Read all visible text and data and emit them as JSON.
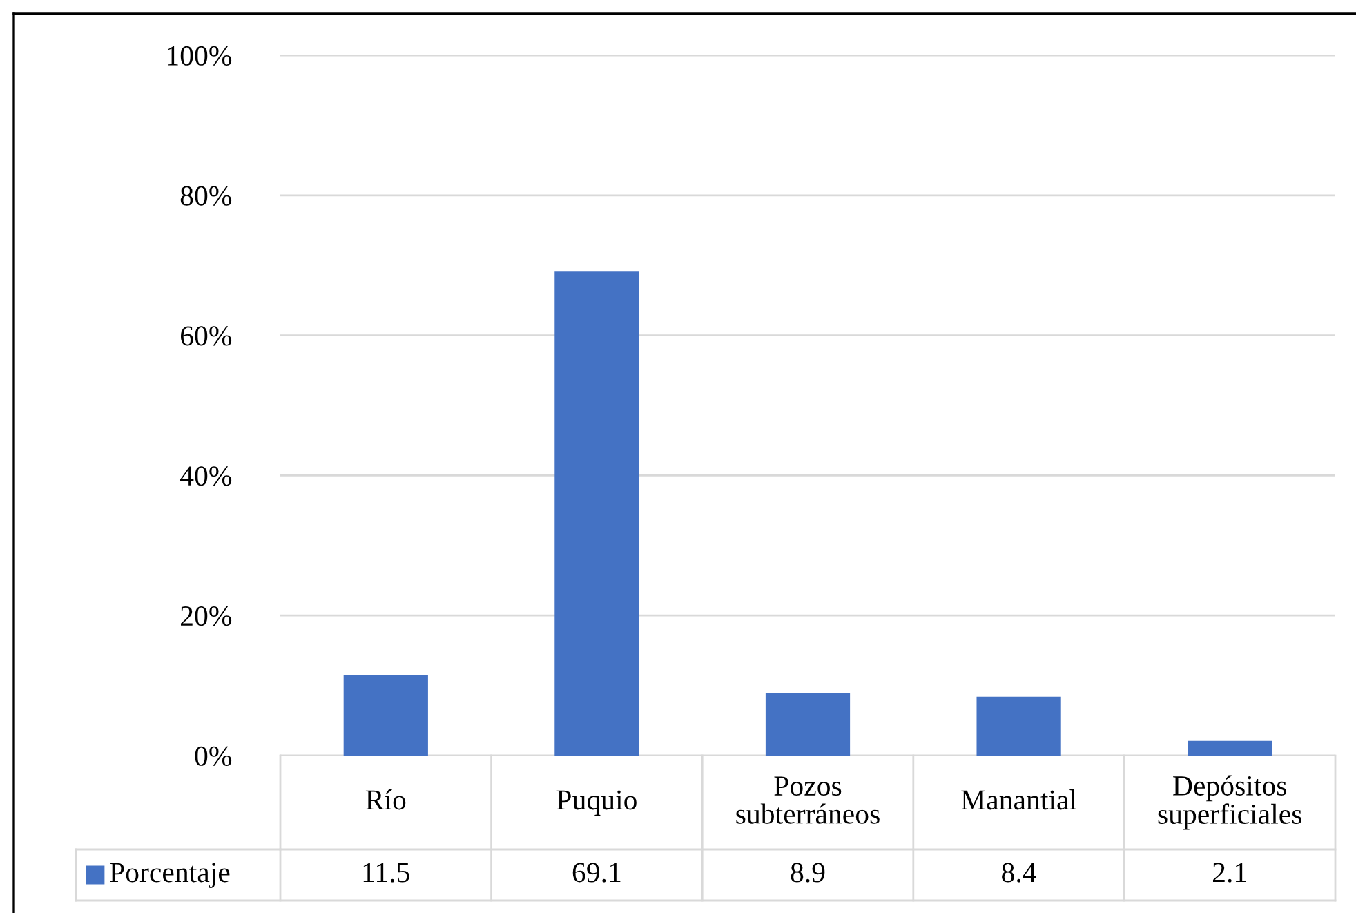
{
  "chart_data": {
    "type": "bar",
    "categories": [
      "Río",
      "Puquio",
      "Pozos subterráneos",
      "Manantial",
      "Depósitos superficiales"
    ],
    "series": [
      {
        "name": "Porcentaje",
        "color": "#4472c4",
        "values": [
          11.5,
          69.1,
          8.9,
          8.4,
          2.1
        ]
      }
    ],
    "ylim": [
      0,
      100
    ],
    "yticks": [
      {
        "value": 0,
        "label": "0%"
      },
      {
        "value": 20,
        "label": "20%"
      },
      {
        "value": 40,
        "label": "40%"
      },
      {
        "value": 60,
        "label": "60%"
      },
      {
        "value": 80,
        "label": "80%"
      },
      {
        "value": 100,
        "label": "100%"
      }
    ],
    "grid": "y",
    "legend": "bottom",
    "data_labels": true
  }
}
